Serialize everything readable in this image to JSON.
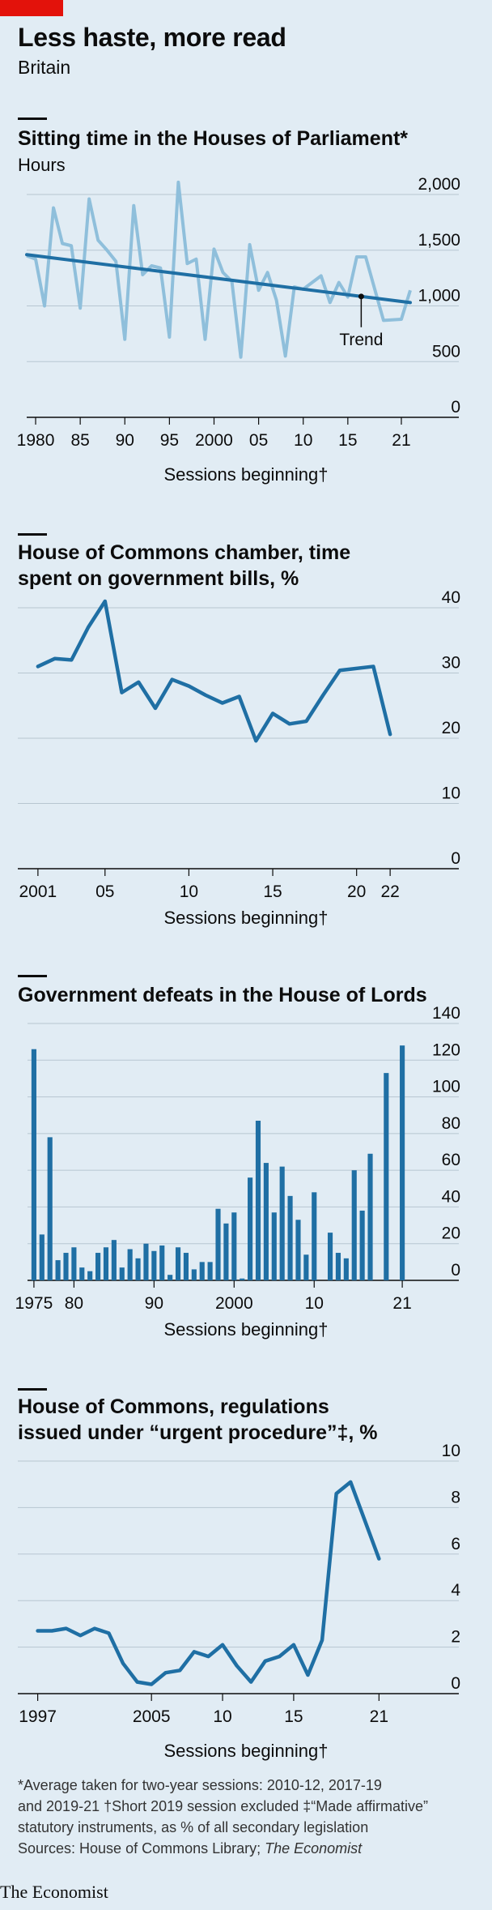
{
  "title": "Less haste, more read",
  "subtitle": "Britain",
  "footnotes": {
    "line1": "*Average taken for two-year sessions: 2010-12, 2017-19",
    "line2": "and 2019-21   †Short 2019 session excluded   ‡“Made affirmative”",
    "line3": "statutory instruments, as % of all secondary legislation",
    "sources_prefix": "Sources: House of Commons Library; ",
    "sources_italic": "The Economist"
  },
  "brand": "The Economist",
  "colors": {
    "accent_red": "#e3120b",
    "line_dark": "#1f6fa4",
    "line_light": "#8fbfdb",
    "background": "#e1ecf4"
  },
  "chart_data": [
    {
      "type": "line",
      "title": "Sitting time in the Houses of Parliament*",
      "unit_label": "Hours",
      "xlabel": "Sessions beginning†",
      "x_tick_labels": [
        "1980",
        "85",
        "90",
        "95",
        "2000",
        "05",
        "10",
        "15",
        "21"
      ],
      "x_ticks": [
        1980,
        1985,
        1990,
        1995,
        2000,
        2005,
        2010,
        2015,
        2021
      ],
      "xlim": [
        1979,
        2022
      ],
      "y_ticks": [
        0,
        500,
        1000,
        1500,
        2000
      ],
      "y_tick_labels": [
        "0",
        "500",
        "1,000",
        "1,500",
        "2,000"
      ],
      "ylim": [
        0,
        2000
      ],
      "annotation": "Trend",
      "series": [
        {
          "style": "light",
          "x": [
            1979,
            1980,
            1981,
            1982,
            1983,
            1984,
            1985,
            1986,
            1987,
            1988,
            1989,
            1990,
            1991,
            1992,
            1993,
            1994,
            1995,
            1996,
            1997,
            1998,
            1999,
            2000,
            2001,
            2002,
            2003,
            2004,
            2005,
            2006,
            2007,
            2008,
            2009,
            2010,
            2012,
            2013,
            2014,
            2015,
            2016,
            2017,
            2019,
            2021,
            2022
          ],
          "values": [
            1450,
            1420,
            1000,
            1880,
            1560,
            1540,
            980,
            1960,
            1590,
            1500,
            1400,
            700,
            1900,
            1280,
            1360,
            1340,
            720,
            2110,
            1380,
            1420,
            700,
            1510,
            1300,
            1220,
            540,
            1550,
            1140,
            1300,
            1050,
            550,
            1170,
            1150,
            1270,
            1030,
            1210,
            1080,
            1440,
            1440,
            870,
            880,
            1140
          ]
        },
        {
          "name": "Trend",
          "style": "dark",
          "x": [
            1979,
            2022
          ],
          "values": [
            1460,
            1030
          ]
        }
      ]
    },
    {
      "type": "line",
      "title_line1": "House of Commons chamber, time",
      "title_line2": "spent on government bills, %",
      "xlabel": "Sessions beginning†",
      "x_tick_labels": [
        "2001",
        "05",
        "10",
        "15",
        "20",
        "22"
      ],
      "x_ticks": [
        2001,
        2005,
        2010,
        2015,
        2020,
        2022
      ],
      "xlim": [
        1999.8,
        2023.2
      ],
      "y_ticks": [
        0,
        10,
        20,
        30,
        40
      ],
      "ylim": [
        0,
        40
      ],
      "series": [
        {
          "x": [
            2001,
            2002,
            2003,
            2004,
            2005,
            2006,
            2007,
            2008,
            2009,
            2010,
            2011,
            2012,
            2013,
            2014,
            2015,
            2016,
            2017,
            2018,
            2019,
            2021,
            2022
          ],
          "values": [
            31,
            32.2,
            32,
            37,
            41,
            27,
            28.6,
            24.6,
            29,
            28,
            26.6,
            25.4,
            26.4,
            19.6,
            23.8,
            22.2,
            22.6,
            26.6,
            30.4,
            31,
            20.6
          ]
        }
      ]
    },
    {
      "type": "bar",
      "title": "Government defeats in the House of Lords",
      "xlabel": "Sessions beginning†",
      "x_tick_labels": [
        "1975",
        "80",
        "90",
        "2000",
        "10",
        "21"
      ],
      "x_ticks": [
        1975,
        1980,
        1990,
        2000,
        2010,
        2021
      ],
      "xlim": [
        1974.2,
        2022
      ],
      "y_ticks": [
        0,
        20,
        40,
        60,
        80,
        100,
        120,
        140
      ],
      "ylim": [
        0,
        140
      ],
      "categories": [
        1975,
        1976,
        1977,
        1978,
        1979,
        1980,
        1981,
        1982,
        1983,
        1984,
        1985,
        1986,
        1987,
        1988,
        1989,
        1990,
        1991,
        1992,
        1993,
        1994,
        1995,
        1996,
        1997,
        1998,
        1999,
        2000,
        2001,
        2002,
        2003,
        2004,
        2005,
        2006,
        2007,
        2008,
        2009,
        2010,
        2012,
        2013,
        2014,
        2015,
        2016,
        2017,
        2019,
        2021
      ],
      "values": [
        126,
        25,
        78,
        11,
        15,
        18,
        7,
        5,
        15,
        18,
        22,
        7,
        17,
        12,
        20,
        16,
        19,
        3,
        18,
        15,
        6,
        10,
        10,
        39,
        31,
        37,
        1,
        56,
        87,
        64,
        37,
        62,
        46,
        33,
        14,
        48,
        26,
        15,
        12,
        60,
        38,
        69,
        113,
        128
      ]
    },
    {
      "type": "line",
      "title_line1": "House of Commons, regulations",
      "title_line2": "issued under “urgent procedure”‡, %",
      "xlabel": "Sessions beginning†",
      "x_tick_labels": [
        "1997",
        "2005",
        "10",
        "15",
        "21"
      ],
      "x_ticks": [
        1997,
        2005,
        2010,
        2015,
        2021
      ],
      "xlim": [
        1995.6,
        2023.2
      ],
      "y_ticks": [
        0,
        2,
        4,
        6,
        8,
        10
      ],
      "ylim": [
        0,
        10
      ],
      "series": [
        {
          "x": [
            1997,
            1998,
            1999,
            2000,
            2001,
            2002,
            2003,
            2004,
            2005,
            2006,
            2007,
            2008,
            2009,
            2010,
            2011,
            2012,
            2013,
            2014,
            2015,
            2016,
            2017,
            2018,
            2019,
            2021
          ],
          "values": [
            2.7,
            2.7,
            2.8,
            2.5,
            2.8,
            2.6,
            1.3,
            0.5,
            0.4,
            0.9,
            1,
            1.8,
            1.6,
            2.1,
            1.2,
            0.5,
            1.4,
            1.6,
            2.1,
            0.8,
            2.3,
            8.6,
            9.1,
            5.8
          ]
        }
      ]
    }
  ]
}
